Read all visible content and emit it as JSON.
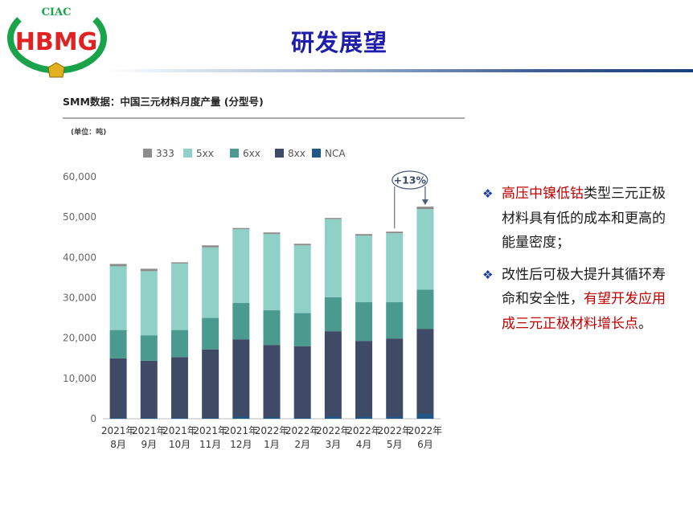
{
  "logo": {
    "top_text": "CIAC",
    "main_text": "HBMG"
  },
  "slide": {
    "title": "研发展望"
  },
  "bullets": [
    {
      "parts": [
        {
          "text": "高压中镍低钴",
          "highlight": true
        },
        {
          "text": "类型三元正极材料具有低的成本和更高的能量密度；",
          "highlight": false
        }
      ]
    },
    {
      "parts": [
        {
          "text": "改性后可极大提升其循环寿命和安全性，",
          "highlight": false
        },
        {
          "text": "有望开发应用成三元正极材料增长点",
          "highlight": true
        },
        {
          "text": "。",
          "highlight": false
        }
      ]
    }
  ],
  "colors": {
    "title": "#1e1eaa",
    "highlight": "#c00000",
    "s333": "#8c8c8c",
    "s5xx": "#8fd1c6",
    "s6xx": "#4a9a90",
    "s8xx": "#3e4a66",
    "sNCA": "#1f5888"
  },
  "chart_data": {
    "type": "bar",
    "stacked": true,
    "title": "SMM数据：中国三元材料月度产量 (分型号)",
    "unit_label": "(单位：吨)",
    "categories": [
      "2021年8月",
      "2021年9月",
      "2021年10月",
      "2021年11月",
      "2021年12月",
      "2022年1月",
      "2022年2月",
      "2022年3月",
      "2022年4月",
      "2022年5月",
      "2022年6月"
    ],
    "category_lines": [
      [
        "2021年",
        "8月"
      ],
      [
        "2021年",
        "9月"
      ],
      [
        "2021年",
        "10月"
      ],
      [
        "2021年",
        "11月"
      ],
      [
        "2021年",
        "12月"
      ],
      [
        "2022年",
        "1月"
      ],
      [
        "2022年",
        "2月"
      ],
      [
        "2022年",
        "3月"
      ],
      [
        "2022年",
        "4月"
      ],
      [
        "2022年",
        "5月"
      ],
      [
        "2022年",
        "6月"
      ]
    ],
    "series": [
      {
        "name": "NCA",
        "values": [
          200,
          200,
          200,
          200,
          500,
          300,
          200,
          500,
          500,
          500,
          1200
        ]
      },
      {
        "name": "8xx",
        "values": [
          14800,
          14200,
          15100,
          17000,
          19200,
          18000,
          17800,
          21200,
          18800,
          19400,
          21100
        ]
      },
      {
        "name": "6xx",
        "values": [
          7000,
          6300,
          6700,
          7800,
          9000,
          8600,
          8200,
          8400,
          9600,
          9000,
          9700
        ]
      },
      {
        "name": "5xx",
        "values": [
          15800,
          15900,
          16500,
          17500,
          18300,
          18900,
          16800,
          19400,
          16500,
          17100,
          20000
        ]
      },
      {
        "name": "333",
        "values": [
          600,
          600,
          300,
          500,
          300,
          400,
          400,
          300,
          400,
          400,
          600
        ]
      }
    ],
    "legend": [
      "333",
      "5xx",
      "6xx",
      "8xx",
      "NCA"
    ],
    "legend_position": "top",
    "ylim": [
      0,
      60000
    ],
    "yticks": [
      "0",
      "10,000",
      "20,000",
      "30,000",
      "40,000",
      "50,000",
      "60,000"
    ],
    "ytick_values": [
      0,
      10000,
      20000,
      30000,
      40000,
      50000,
      60000
    ],
    "annotation": {
      "text": "+13%",
      "from_index": 9,
      "to_index": 10
    }
  }
}
